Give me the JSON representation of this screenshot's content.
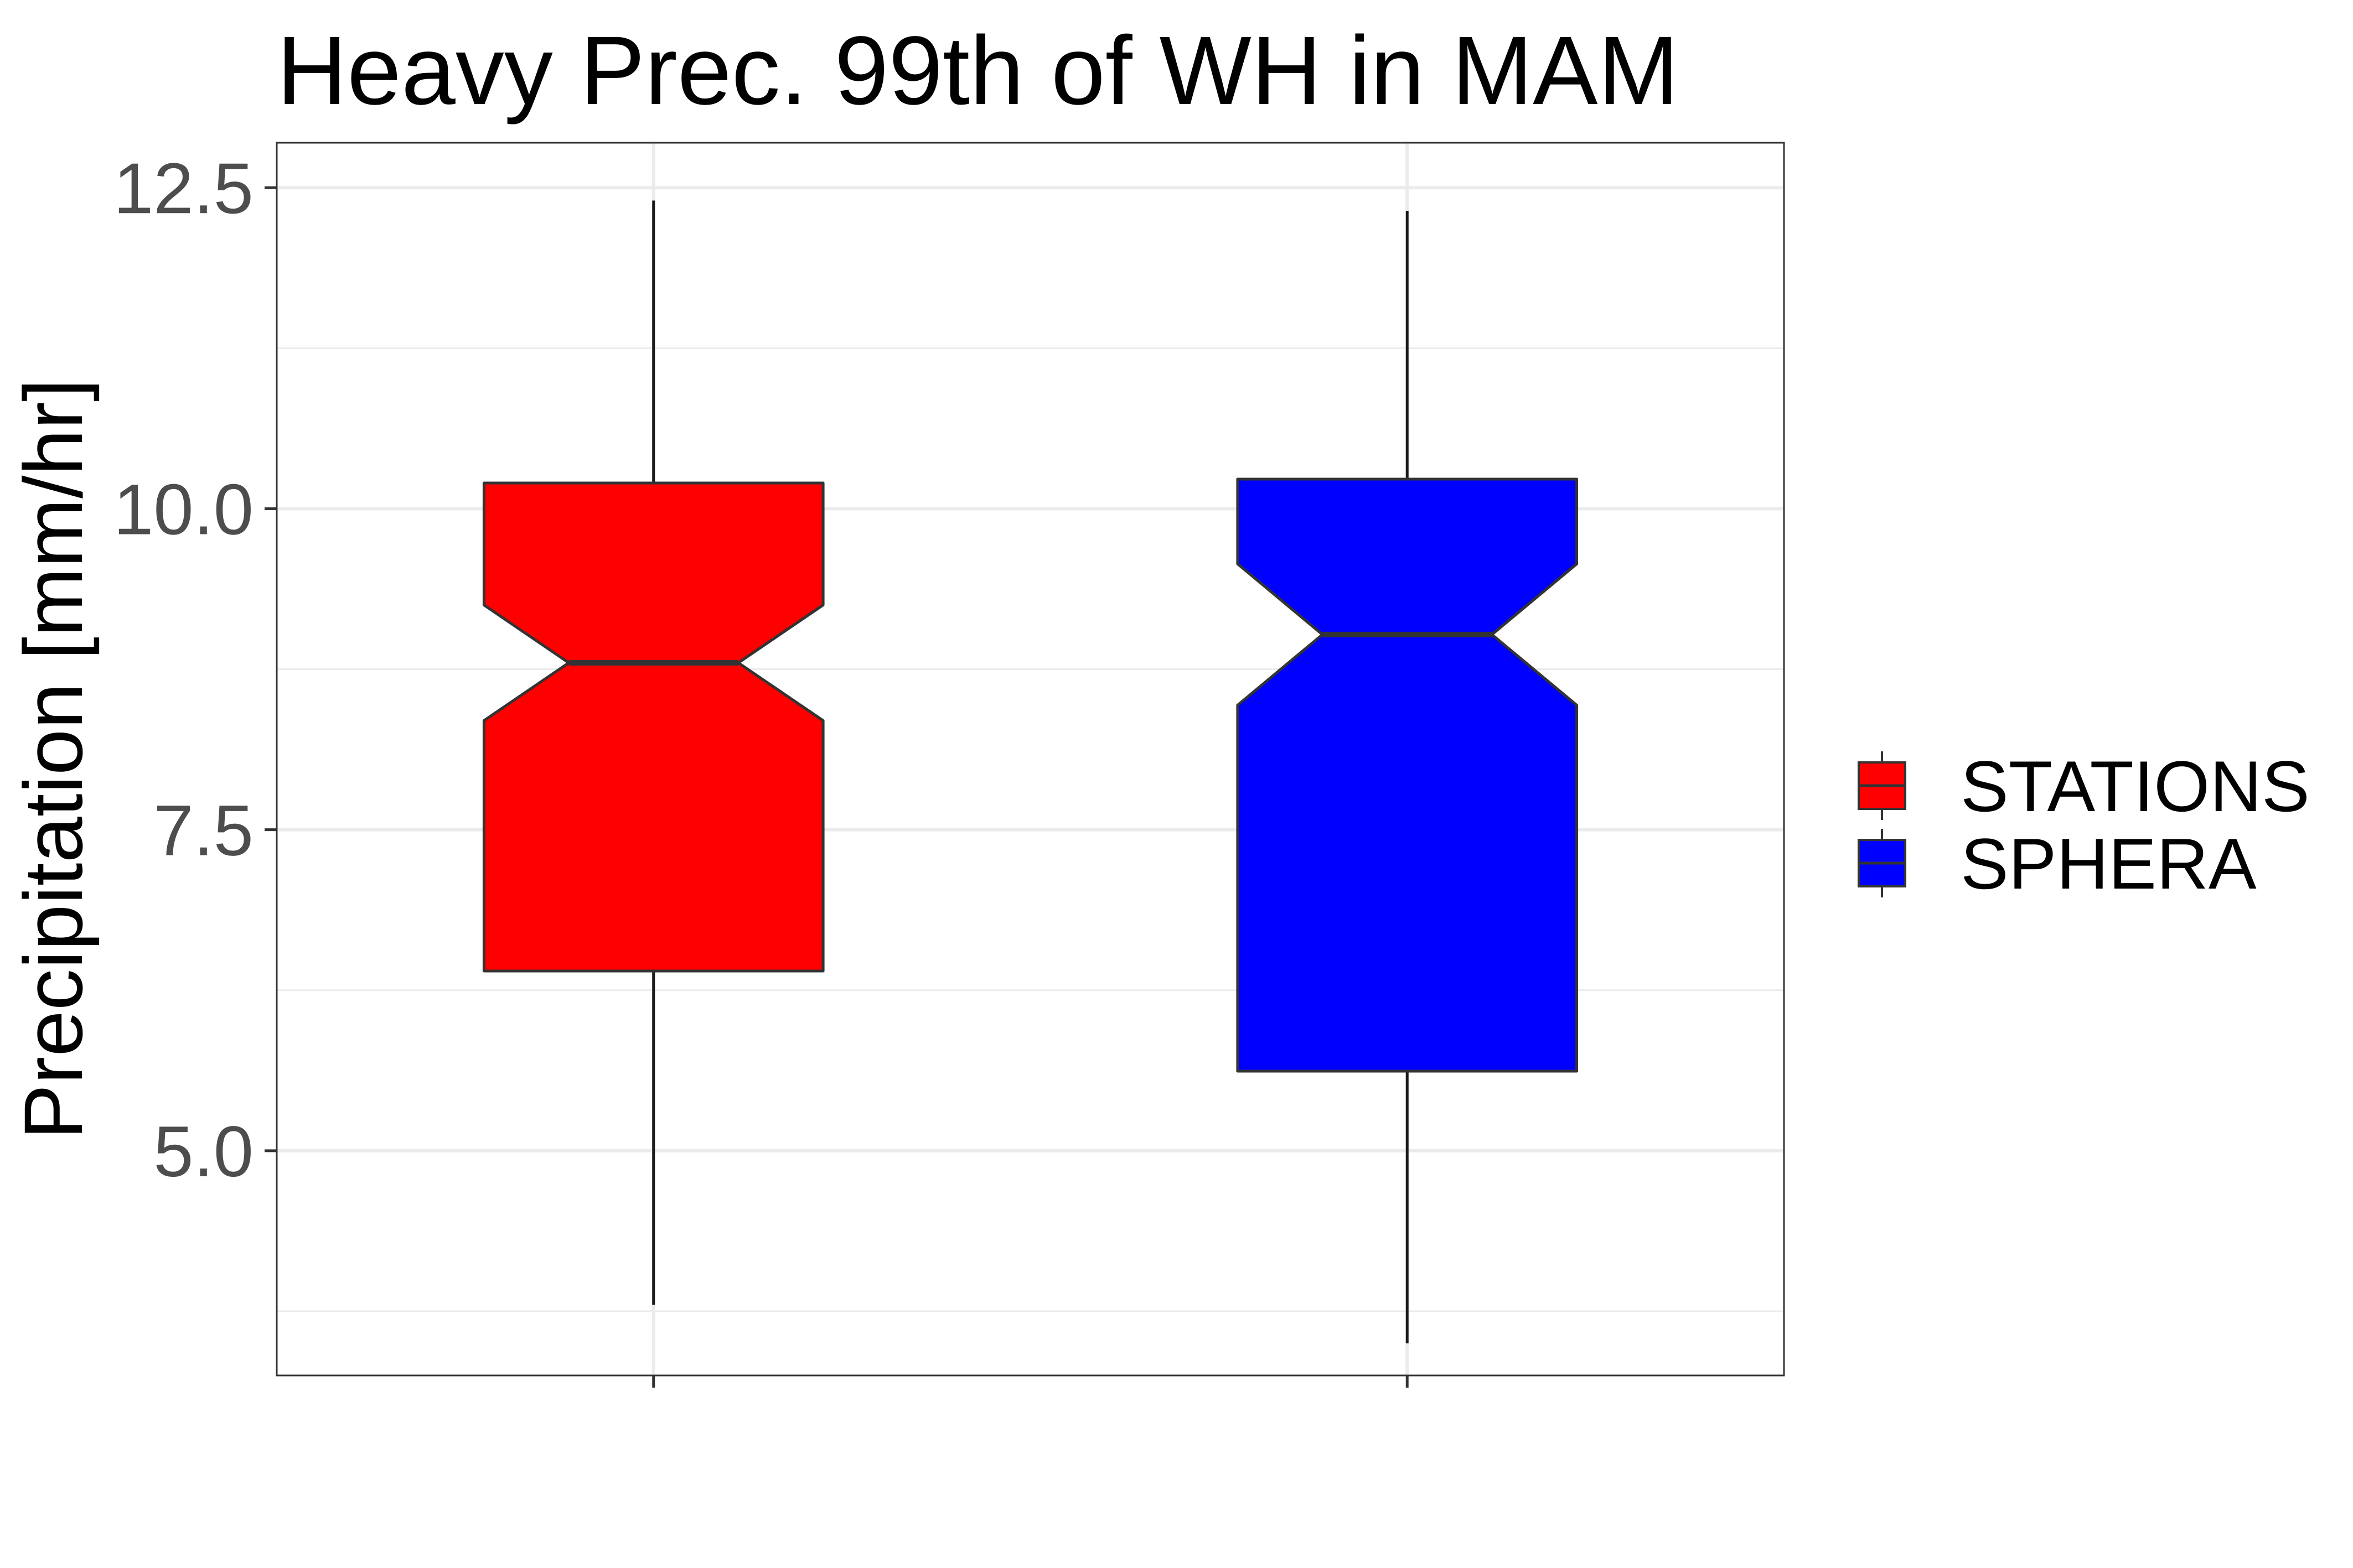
{
  "chart_data": {
    "type": "boxplot",
    "notched": true,
    "title": "Heavy Prec. 99th of WH in MAM",
    "xlabel": "",
    "ylabel": "Precipitation [mm/hr]",
    "ylim": [
      3.25,
      12.85
    ],
    "yticks": [
      5.0,
      7.5,
      10.0,
      12.5
    ],
    "ytick_labels": [
      "5.0",
      "7.5",
      "10.0",
      "12.5"
    ],
    "grid": true,
    "legend_position": "right",
    "series": [
      {
        "name": "STATIONS",
        "color": "#ff0000",
        "min": 3.8,
        "q1": 6.4,
        "median": 8.8,
        "q3": 10.2,
        "max": 12.4,
        "notch_low": 8.35,
        "notch_high": 9.25
      },
      {
        "name": "SPHERA",
        "color": "#0000ff",
        "min": 3.5,
        "q1": 5.62,
        "median": 9.02,
        "q3": 10.23,
        "max": 12.32,
        "notch_low": 8.47,
        "notch_high": 9.57
      }
    ]
  }
}
